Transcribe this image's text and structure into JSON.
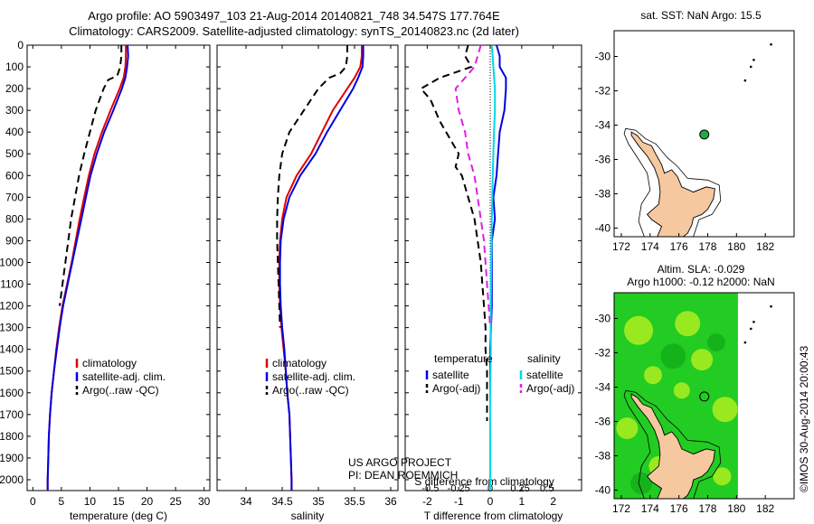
{
  "title_line1": "Argo profile: AO 5903497_103 21-Aug-2014 20140821_748 34.547S 177.764E",
  "title_line2": "Climatology: CARS2009. Satellite-adjusted climatology: synTS_20140823.nc (2d later)",
  "map1_title": "sat. SST: NaN Argo: 15.5",
  "map2_title_line1": "Altim. SLA: -0.029",
  "map2_title_line2": "Argo h1000: -0.12 h2000: NaN",
  "side_label": "©IMOS 30-Aug-2014 20:00:43",
  "project_line1": "US ARGO PROJECT",
  "project_line2": "PI: DEAN ROEMMICH",
  "colors": {
    "clim": "#e00000",
    "sat": "#0000e0",
    "argo": "#000000",
    "sat_s": "#00d8e8",
    "argo_s": "#e020e0",
    "land": "#f5c8a0",
    "ocean_green": "#22cc22"
  },
  "chart_data": [
    {
      "type": "line",
      "xlabel": "temperature (deg C)",
      "ylabel": "",
      "xlim": [
        -1,
        31
      ],
      "ylim": [
        2050,
        0
      ],
      "xticks": [
        0,
        5,
        10,
        15,
        20,
        25,
        30
      ],
      "yticks": [
        0,
        100,
        200,
        300,
        400,
        500,
        600,
        700,
        800,
        900,
        1000,
        1100,
        1200,
        1300,
        1400,
        1500,
        1600,
        1700,
        1800,
        1900,
        2000
      ],
      "legend": [
        "climatology",
        "satellite-adj. clim.",
        "Argo(..raw -QC)"
      ],
      "series": [
        {
          "name": "climatology",
          "color": "#e00000",
          "dash": "",
          "depth": [
            0,
            50,
            100,
            150,
            200,
            300,
            400,
            500,
            600,
            700,
            800,
            900,
            1000,
            1100,
            1200,
            1300,
            1400,
            1500,
            1600,
            1700,
            1800,
            1900,
            2000,
            2050
          ],
          "values": [
            16.3,
            16.3,
            16.2,
            15.9,
            15.2,
            13.6,
            12.1,
            10.8,
            9.8,
            9.0,
            8.2,
            7.5,
            6.8,
            6.0,
            5.2,
            4.6,
            4.1,
            3.7,
            3.3,
            3.0,
            2.8,
            2.7,
            2.6,
            2.6
          ]
        },
        {
          "name": "satellite-adj. clim.",
          "color": "#0000e0",
          "dash": "",
          "depth": [
            0,
            50,
            100,
            150,
            200,
            300,
            400,
            500,
            600,
            700,
            800,
            900,
            1000,
            1100,
            1200,
            1300,
            1400,
            1500,
            1600,
            1700,
            1800,
            1900,
            2000,
            2050
          ],
          "values": [
            16.6,
            16.7,
            16.5,
            16.2,
            15.6,
            14.1,
            12.5,
            11.2,
            10.1,
            9.3,
            8.5,
            7.7,
            6.9,
            6.1,
            5.3,
            4.7,
            4.2,
            3.7,
            3.3,
            3.0,
            2.8,
            2.7,
            2.6,
            2.6
          ]
        },
        {
          "name": "Argo(..raw -QC)",
          "color": "#000000",
          "dash": "8,5",
          "depth": [
            0,
            50,
            100,
            140,
            160,
            200,
            300,
            400,
            500,
            600,
            700,
            800,
            900,
            1000,
            1100,
            1200
          ],
          "values": [
            15.5,
            15.5,
            15.3,
            14.8,
            13.2,
            12.4,
            11.0,
            10.0,
            9.0,
            8.1,
            7.4,
            6.7,
            6.2,
            5.7,
            5.2,
            4.7
          ]
        }
      ]
    },
    {
      "type": "line",
      "xlabel": "salinity",
      "ylabel": "",
      "xlim": [
        33.6,
        36.1
      ],
      "ylim": [
        2050,
        0
      ],
      "xticks": [
        34,
        34.5,
        35,
        35.5,
        36
      ],
      "legend": [
        "climatology",
        "satellite-adj. clim.",
        "Argo(..raw -QC)"
      ],
      "series": [
        {
          "name": "climatology",
          "color": "#e00000",
          "dash": "",
          "depth": [
            0,
            50,
            100,
            150,
            200,
            300,
            400,
            500,
            600,
            700,
            800,
            900,
            1000,
            1100,
            1200,
            1300,
            1400,
            1500,
            1600,
            1700,
            1800,
            1900,
            2000,
            2050
          ],
          "values": [
            35.6,
            35.6,
            35.58,
            35.5,
            35.4,
            35.2,
            35.05,
            34.9,
            34.7,
            34.56,
            34.5,
            34.47,
            34.46,
            34.46,
            34.47,
            34.49,
            34.52,
            34.55,
            34.57,
            34.6,
            34.61,
            34.62,
            34.63,
            34.63
          ]
        },
        {
          "name": "satellite-adj. clim.",
          "color": "#0000e0",
          "dash": "",
          "depth": [
            0,
            50,
            100,
            150,
            200,
            300,
            400,
            500,
            600,
            700,
            800,
            900,
            1000,
            1100,
            1200,
            1300,
            1400,
            1500,
            1600,
            1700,
            1800,
            1900,
            2000,
            2050
          ],
          "values": [
            35.62,
            35.62,
            35.61,
            35.55,
            35.48,
            35.3,
            35.12,
            34.96,
            34.75,
            34.6,
            34.52,
            34.48,
            34.47,
            34.47,
            34.48,
            34.5,
            34.53,
            34.55,
            34.57,
            34.6,
            34.61,
            34.62,
            34.63,
            34.63
          ]
        },
        {
          "name": "Argo(..raw -QC)",
          "color": "#000000",
          "dash": "8,5",
          "depth": [
            0,
            50,
            100,
            130,
            150,
            200,
            300,
            400,
            500,
            600,
            700,
            800,
            900,
            1000,
            1100,
            1200,
            1300
          ],
          "values": [
            35.4,
            35.4,
            35.38,
            35.3,
            35.15,
            35.0,
            34.8,
            34.6,
            34.5,
            34.46,
            34.44,
            34.43,
            34.43,
            34.44,
            34.45,
            34.46,
            34.47
          ]
        }
      ]
    },
    {
      "type": "line",
      "xlabel": "T difference from climatology",
      "xlabel2": "S difference from climatology",
      "xlim": [
        -2.7,
        2.9
      ],
      "ylim": [
        2050,
        0
      ],
      "xticks": [
        -2,
        -1,
        0,
        1,
        2
      ],
      "xticks2_labels": [
        "-0.5",
        "-0.25",
        "0",
        "0.25",
        "0.5"
      ],
      "xticks2_T": [
        -1.9,
        -1.0,
        0.0,
        0.95,
        1.8
      ],
      "legend_left_title": "temperature",
      "legend_right_title": "salinity",
      "legend": [
        "satellite",
        "Argo(-adj)",
        "satellite",
        "Argo(-adj)"
      ],
      "series": [
        {
          "name": "satellite",
          "color": "#0000e0",
          "dash": "",
          "depth": [
            0,
            50,
            100,
            150,
            200,
            300,
            400,
            500,
            600,
            700,
            800,
            900,
            1000,
            1200,
            1400,
            1600,
            1800,
            2000,
            2050
          ],
          "values": [
            0.2,
            0.3,
            0.3,
            0.5,
            0.5,
            0.45,
            0.3,
            0.25,
            0.2,
            0.1,
            0.15,
            0.05,
            0.05,
            0.05,
            0.0,
            0.0,
            0.0,
            0.0,
            0.0
          ]
        },
        {
          "name": "Argo(-adj)",
          "color": "#000000",
          "dash": "8,5",
          "depth": [
            0,
            50,
            100,
            150,
            200,
            250,
            350,
            450,
            500,
            560,
            600,
            700,
            800,
            900,
            1000,
            1100,
            1200,
            1300,
            1400,
            1500,
            1600,
            1700,
            1730
          ],
          "values": [
            -0.7,
            -0.8,
            -0.6,
            -1.6,
            -2.2,
            -1.9,
            -1.6,
            -1.2,
            -1.0,
            -1.1,
            -0.9,
            -0.7,
            -0.5,
            -0.4,
            -0.3,
            -0.25,
            -0.2,
            -0.15,
            -0.15,
            -0.1,
            -0.1,
            -0.1,
            -0.1
          ]
        },
        {
          "name": "satellite",
          "color": "#00d8e8",
          "dash": "",
          "depth": [
            0,
            100,
            200,
            300,
            400,
            500,
            600,
            800,
            1000,
            1200,
            1400,
            1600,
            1800,
            2000,
            2050
          ],
          "values": [
            0.05,
            0.1,
            0.15,
            0.15,
            0.12,
            0.1,
            0.08,
            0.05,
            0.03,
            0.02,
            0.02,
            0.0,
            0.0,
            0.0,
            0.0
          ]
        },
        {
          "name": "Argo(-adj)",
          "color": "#e020e0",
          "dash": "8,5",
          "depth": [
            0,
            50,
            100,
            150,
            200,
            300,
            400,
            500,
            600,
            700,
            800,
            900,
            1000,
            1100,
            1200,
            1300
          ],
          "values": [
            -0.3,
            -0.4,
            -0.5,
            -0.8,
            -1.1,
            -1.0,
            -0.8,
            -0.7,
            -0.5,
            -0.4,
            -0.3,
            -0.2,
            -0.15,
            -0.1,
            -0.05,
            0.0
          ]
        }
      ]
    }
  ],
  "maps": [
    {
      "xlim": [
        171.5,
        184
      ],
      "ylim": [
        -40.5,
        -28.5
      ],
      "xticks": [
        172,
        174,
        176,
        178,
        180,
        182
      ],
      "yticks": [
        -30,
        -32,
        -34,
        -36,
        -38,
        -40
      ],
      "marker": [
        177.764,
        -34.547
      ]
    },
    {
      "xlim": [
        171.5,
        184
      ],
      "ylim": [
        -40.5,
        -28.5
      ],
      "xticks": [
        172,
        174,
        176,
        178,
        180,
        182
      ],
      "yticks": [
        -30,
        -32,
        -34,
        -36,
        -38,
        -40
      ],
      "marker": [
        177.764,
        -34.547
      ]
    }
  ]
}
